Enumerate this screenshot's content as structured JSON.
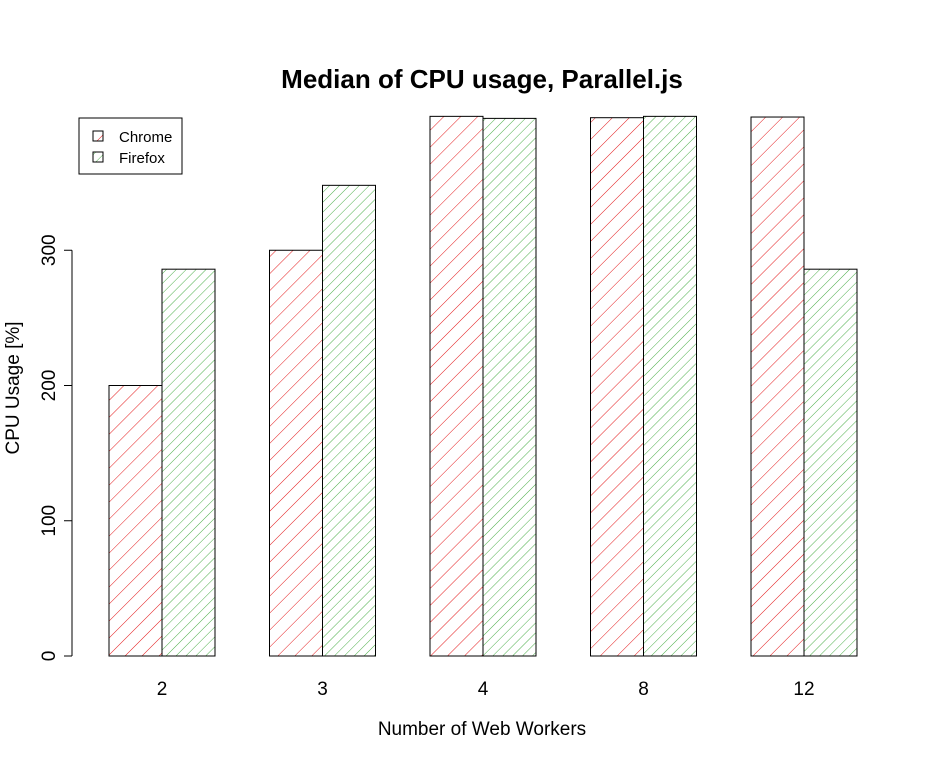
{
  "chart_data": {
    "type": "bar",
    "title": "Median of CPU usage, Parallel.js",
    "xlabel": "Number of Web Workers",
    "ylabel": "CPU Usage [%]",
    "categories": [
      "2",
      "3",
      "4",
      "8",
      "12"
    ],
    "series": [
      {
        "name": "Chrome",
        "values": [
          200,
          300,
          399,
          398,
          398.5
        ],
        "color": "#e41a1c"
      },
      {
        "name": "Firefox",
        "values": [
          286,
          348,
          397.5,
          399,
          286
        ],
        "color": "#4daf4a"
      }
    ],
    "ylim": [
      0,
      400
    ],
    "yticks": [
      "0",
      "100",
      "200",
      "300"
    ],
    "ytick_values": [
      0,
      100,
      200,
      300
    ],
    "legend_position": "top-left",
    "fill": "hatched",
    "grid": false
  }
}
